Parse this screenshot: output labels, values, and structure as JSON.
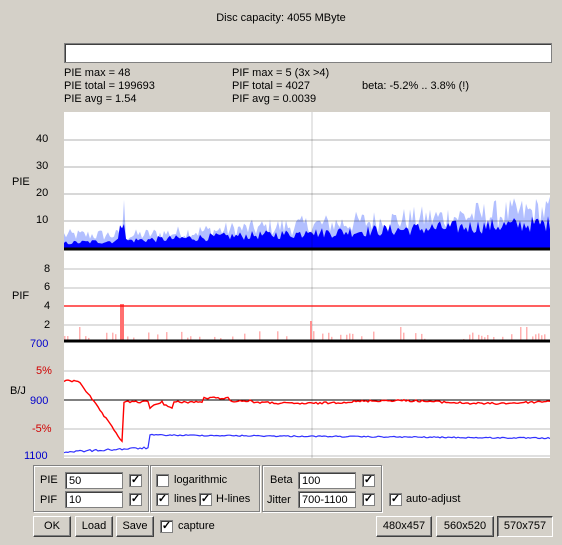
{
  "header": {
    "title": "Disc capacity: 4055 MByte"
  },
  "progress": {
    "value_percent": 0
  },
  "stats": {
    "pie_max": "PIE max = 48",
    "pie_total": "PIE total = 199693",
    "pie_avg": "PIE avg = 1.54",
    "pif_max": "PIF max = 5 (3x >4)",
    "pif_total": "PIF total = 4027",
    "pif_avg": "PIF avg = 0.0039",
    "beta": "beta: -5.2% .. 3.8% (!)"
  },
  "pie_chart": {
    "label": "PIE",
    "ticks": [
      "40",
      "30",
      "20",
      "10"
    ],
    "colors": {
      "bars": "#0000ff",
      "grid": "#000000"
    }
  },
  "pif_chart": {
    "label": "PIF",
    "ticks": [
      "8",
      "6",
      "4",
      "2"
    ],
    "colors": {
      "bars": "#ffb0b0",
      "limit": "#ff0000"
    }
  },
  "bj_chart": {
    "label": "B/J",
    "ticks": [
      "700",
      "5%",
      "900",
      "-5%",
      "1100"
    ],
    "colors": {
      "beta": "#ff0000",
      "jitter": "#0000ff"
    }
  },
  "controls": {
    "pie_label": "PIE",
    "pie_value": "50",
    "pif_label": "PIF",
    "pif_value": "10",
    "logarithmic_label": "logarithmic",
    "lines_label": "lines",
    "hlines_label": "H-lines",
    "beta_label": "Beta",
    "beta_value": "100",
    "jitter_label": "Jitter",
    "jitter_value": "700-1100",
    "auto_adjust_label": "auto-adjust",
    "capture_label": "capture",
    "check_mark": "✓"
  },
  "buttons": {
    "ok": "OK",
    "load": "Load",
    "save": "Save",
    "size1": "480x457",
    "size2": "560x520",
    "size3": "570x757"
  }
}
